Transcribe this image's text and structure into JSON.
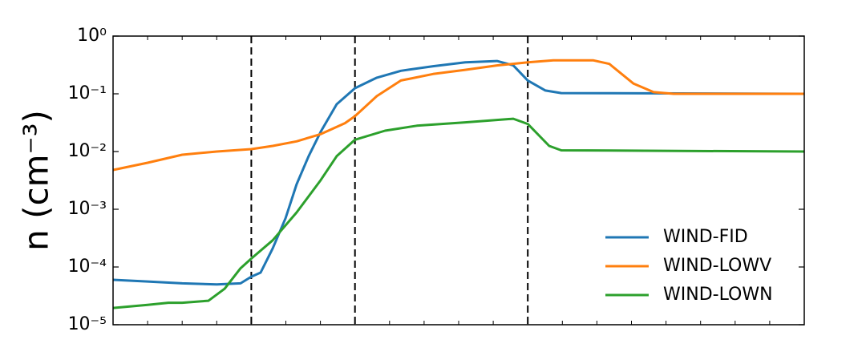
{
  "chart_data": {
    "type": "line",
    "ylabel": "n (cm⁻³)",
    "log_y": true,
    "ylim": [
      1e-05,
      1
    ],
    "yticks": [
      {
        "value": 1e-05,
        "label": "10⁻⁵"
      },
      {
        "value": 0.0001,
        "label": "10⁻⁴"
      },
      {
        "value": 0.001,
        "label": "10⁻³"
      },
      {
        "value": 0.01,
        "label": "10⁻²"
      },
      {
        "value": 0.1,
        "label": "10⁻¹"
      },
      {
        "value": 1,
        "label": "10⁰"
      }
    ],
    "xlim": [
      0,
      20
    ],
    "xticks": [
      0,
      1,
      2,
      3,
      4,
      5,
      6,
      7,
      8,
      9,
      10,
      11,
      12,
      13,
      14,
      15,
      16,
      17,
      18,
      19,
      20
    ],
    "vlines": [
      4,
      7,
      12
    ],
    "legend": "lower right",
    "series": [
      {
        "name": "WIND-FID",
        "color": "#1f77b4",
        "x": [
          0,
          1,
          2,
          3,
          3.69,
          4,
          4.27,
          4.62,
          4.99,
          5.31,
          5.66,
          6.01,
          6.47,
          7,
          7.63,
          8.33,
          9.26,
          10.19,
          11.11,
          11.58,
          12,
          12.51,
          12.97,
          20
        ],
        "values": [
          6e-05,
          5.6e-05,
          5.2e-05,
          5e-05,
          5.2e-05,
          6.8e-05,
          8e-05,
          0.00021,
          0.0007,
          0.0027,
          0.0083,
          0.022,
          0.066,
          0.125,
          0.19,
          0.25,
          0.3,
          0.35,
          0.37,
          0.31,
          0.17,
          0.114,
          0.103,
          0.1
        ]
      },
      {
        "name": "WIND-LOWV",
        "color": "#ff7f0e",
        "x": [
          0,
          1,
          2,
          3,
          4,
          4.62,
          5.31,
          6.01,
          6.71,
          7,
          7.63,
          8.33,
          9.26,
          10.19,
          11.11,
          12,
          12.74,
          13.9,
          14.36,
          15.06,
          15.64,
          16.22,
          20
        ],
        "values": [
          0.0048,
          0.0064,
          0.0088,
          0.01,
          0.011,
          0.0125,
          0.015,
          0.02,
          0.031,
          0.041,
          0.091,
          0.17,
          0.22,
          0.26,
          0.31,
          0.35,
          0.38,
          0.38,
          0.33,
          0.15,
          0.107,
          0.1,
          0.1
        ]
      },
      {
        "name": "WIND-LOWN",
        "color": "#2ca02c",
        "x": [
          0,
          1,
          1.6,
          2,
          2.76,
          3.23,
          3.69,
          4,
          4.62,
          5.31,
          6.01,
          6.47,
          7,
          7.87,
          8.79,
          10.19,
          11.58,
          12,
          12.62,
          12.97,
          20
        ],
        "values": [
          1.95e-05,
          2.2e-05,
          2.4e-05,
          2.4e-05,
          2.6e-05,
          4.2e-05,
          9.5e-05,
          0.00014,
          0.00029,
          0.00088,
          0.0032,
          0.0083,
          0.016,
          0.023,
          0.028,
          0.032,
          0.037,
          0.03,
          0.0125,
          0.0105,
          0.01
        ]
      }
    ]
  }
}
